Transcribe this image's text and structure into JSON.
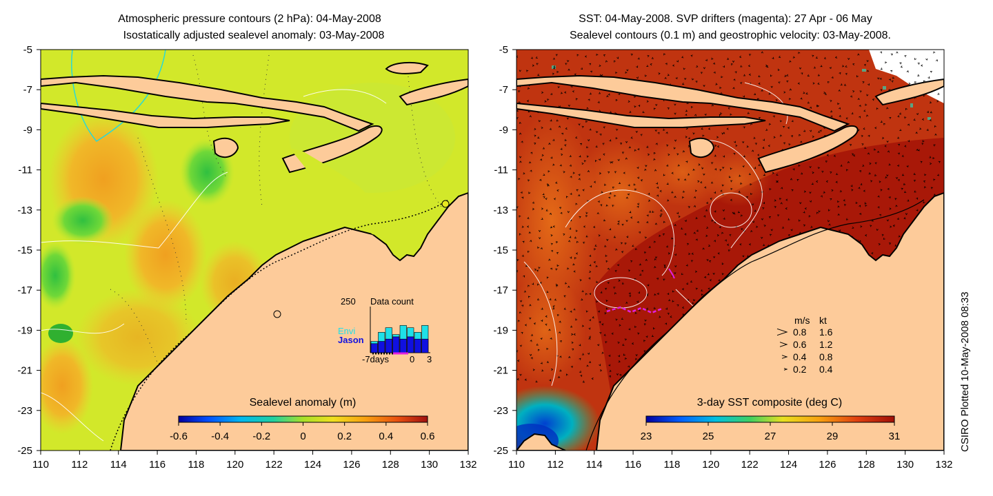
{
  "left_panel": {
    "title_line1": "Atmospheric pressure contours (2 hPa): 04-May-2008",
    "title_line2": "Isostatically adjusted sealevel anomaly: 03-May-2008",
    "x_ticks": [
      "110",
      "112",
      "114",
      "116",
      "118",
      "120",
      "122",
      "124",
      "126",
      "128",
      "130",
      "132"
    ],
    "y_ticks": [
      "-5",
      "-7",
      "-9",
      "-11",
      "-13",
      "-15",
      "-17",
      "-19",
      "-21",
      "-23",
      "-25"
    ],
    "colorbar_title": "Sealevel anomaly (m)",
    "colorbar_ticks": [
      "-0.6",
      "-0.4",
      "-0.2",
      "0",
      "0.2",
      "0.4",
      "0.6"
    ],
    "data_count": {
      "max_label": "250",
      "title": "Data count",
      "envi_label": "Envi",
      "jason_label": "Jason",
      "x_left": "-7days",
      "x_zero": "0",
      "x_right": "3",
      "envi_color": "#1ee0e8",
      "jason_color": "#1010e0"
    }
  },
  "right_panel": {
    "title_line1": "SST: 04-May-2008. SVP drifters (magenta): 27 Apr - 06 May",
    "title_line2": "Sealevel contours (0.1 m) and geostrophic velocity: 03-May-2008.",
    "x_ticks": [
      "110",
      "112",
      "114",
      "116",
      "118",
      "120",
      "122",
      "124",
      "126",
      "128",
      "130",
      "132"
    ],
    "y_ticks": [
      "-5",
      "-7",
      "-9",
      "-11",
      "-13",
      "-15",
      "-17",
      "-19",
      "-21",
      "-23",
      "-25"
    ],
    "colorbar_title": "3-day SST composite (deg C)",
    "colorbar_ticks": [
      "23",
      "25",
      "27",
      "29",
      "31"
    ],
    "velocity_legend": {
      "header_ms": "m/s",
      "header_kt": "kt",
      "rows": [
        {
          "ms": "0.8",
          "kt": "1.6"
        },
        {
          "ms": "0.6",
          "kt": "1.2"
        },
        {
          "ms": "0.4",
          "kt": "0.8"
        },
        {
          "ms": "0.2",
          "kt": "0.4"
        }
      ]
    }
  },
  "credit": "CSIRO Plotted 10-May-2008 08:33",
  "colors": {
    "land": "#fdcb9a",
    "sla_background": "#d8ec28",
    "sst_background": "#b82008"
  }
}
